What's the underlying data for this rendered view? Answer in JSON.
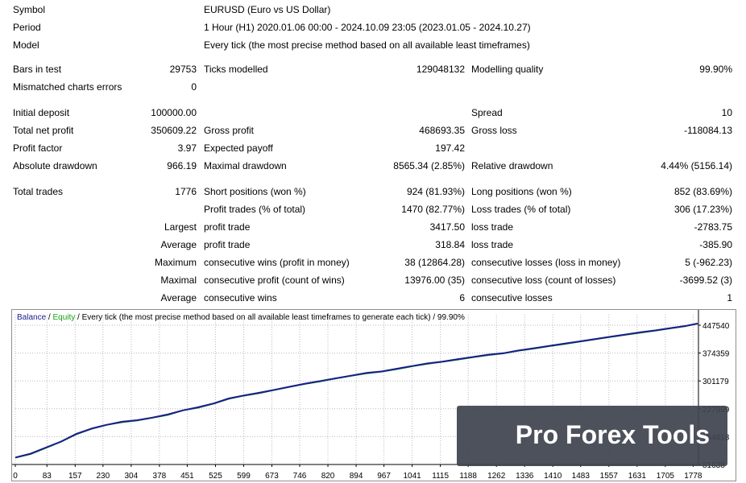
{
  "report": {
    "symbol_label": "Symbol",
    "symbol_value": "EURUSD (Euro vs US Dollar)",
    "period_label": "Period",
    "period_value": "1 Hour (H1) 2020.01.06 00:00 - 2024.10.09 23:05 (2023.01.05 - 2024.10.27)",
    "model_label": "Model",
    "model_value": "Every tick (the most precise method based on all available least timeframes)",
    "bars_label": "Bars in test",
    "bars_value": "29753",
    "ticks_label": "Ticks modelled",
    "ticks_value": "129048132",
    "quality_label": "Modelling quality",
    "quality_value": "99.90%",
    "mismatch_label": "Mismatched charts errors",
    "mismatch_value": "0",
    "deposit_label": "Initial deposit",
    "deposit_value": "100000.00",
    "spread_label": "Spread",
    "spread_value": "10",
    "net_profit_label": "Total net profit",
    "net_profit_value": "350609.22",
    "gross_profit_label": "Gross profit",
    "gross_profit_value": "468693.35",
    "gross_loss_label": "Gross loss",
    "gross_loss_value": "-118084.13",
    "profit_factor_label": "Profit factor",
    "profit_factor_value": "3.97",
    "expected_payoff_label": "Expected payoff",
    "expected_payoff_value": "197.42",
    "abs_dd_label": "Absolute drawdown",
    "abs_dd_value": "966.19",
    "max_dd_label": "Maximal drawdown",
    "max_dd_value": "8565.34 (2.85%)",
    "rel_dd_label": "Relative drawdown",
    "rel_dd_value": "4.44% (5156.14)",
    "total_trades_label": "Total trades",
    "total_trades_value": "1776",
    "short_label": "Short positions (won %)",
    "short_value": "924 (81.93%)",
    "long_label": "Long positions (won %)",
    "long_value": "852 (83.69%)",
    "profit_trades_label": "Profit trades (% of total)",
    "profit_trades_value": "1470 (82.77%)",
    "loss_trades_label": "Loss trades (% of total)",
    "loss_trades_value": "306 (17.23%)",
    "largest_label": "Largest",
    "largest_profit_label": "profit trade",
    "largest_profit_value": "3417.50",
    "largest_loss_label": "loss trade",
    "largest_loss_value": "-2783.75",
    "average_label": "Average",
    "average_profit_label": "profit trade",
    "average_profit_value": "318.84",
    "average_loss_label": "loss trade",
    "average_loss_value": "-385.90",
    "maximum_label": "Maximum",
    "max_cons_wins_label": "consecutive wins (profit in money)",
    "max_cons_wins_value": "38 (12864.28)",
    "max_cons_losses_label": "consecutive losses (loss in money)",
    "max_cons_losses_value": "5 (-962.23)",
    "maximal_label": "Maximal",
    "maximal_cons_profit_label": "consecutive profit (count of wins)",
    "maximal_cons_profit_value": "13976.00 (35)",
    "maximal_cons_loss_label": "consecutive loss (count of losses)",
    "maximal_cons_loss_value": "-3699.52 (3)",
    "avg_cons_label": "Average",
    "avg_cons_wins_label": "consecutive wins",
    "avg_cons_wins_value": "6",
    "avg_cons_losses_label": "consecutive losses",
    "avg_cons_losses_value": "1"
  },
  "chart_header": {
    "balance": "Balance",
    "sep1": " / ",
    "equity": "Equity",
    "rest": " / Every tick (the most precise method based on all available least timeframes to generate each tick) / 99.90%"
  },
  "watermark": {
    "text": "Pro Forex Tools"
  },
  "colors": {
    "balance": "#1b1c8e",
    "equity": "#14a214",
    "grid": "#b9b9b9"
  },
  "chart_data": {
    "type": "line",
    "x_ticks": [
      0,
      83,
      157,
      230,
      304,
      378,
      451,
      525,
      599,
      673,
      746,
      820,
      894,
      967,
      1041,
      1115,
      1188,
      1262,
      1336,
      1410,
      1483,
      1557,
      1631,
      1705,
      1778
    ],
    "y_ticks": [
      81638,
      154818,
      227999,
      301179,
      374359,
      447540
    ],
    "xlim": [
      0,
      1792
    ],
    "ylim": [
      81638,
      475000
    ],
    "series": [
      {
        "name": "Balance",
        "x": [
          0,
          40,
          80,
          120,
          160,
          200,
          240,
          280,
          320,
          360,
          400,
          440,
          480,
          520,
          560,
          600,
          640,
          680,
          720,
          760,
          800,
          840,
          880,
          920,
          960,
          1000,
          1040,
          1080,
          1120,
          1160,
          1200,
          1240,
          1280,
          1320,
          1360,
          1400,
          1440,
          1480,
          1520,
          1560,
          1600,
          1640,
          1680,
          1720,
          1760,
          1790
        ],
        "y": [
          100000,
          110000,
          126000,
          142000,
          162000,
          176000,
          186000,
          194000,
          198000,
          205000,
          213000,
          224000,
          232000,
          242000,
          255000,
          263000,
          270000,
          278000,
          286000,
          294000,
          301000,
          308000,
          315000,
          322000,
          326000,
          333000,
          340000,
          347000,
          352000,
          358000,
          364000,
          370000,
          374000,
          381000,
          387000,
          393000,
          399000,
          405000,
          411000,
          417000,
          423000,
          429000,
          434000,
          440000,
          446000,
          452000
        ]
      },
      {
        "name": "Equity",
        "x": [
          0,
          40,
          80,
          120,
          160,
          200,
          240,
          280,
          320,
          360,
          400,
          440,
          480,
          520,
          560,
          600,
          640,
          680,
          720,
          760,
          800,
          840,
          880,
          920,
          960,
          1000,
          1040,
          1080,
          1120,
          1160,
          1200,
          1240,
          1280,
          1320,
          1360,
          1400,
          1440,
          1480,
          1520,
          1560,
          1600,
          1640,
          1680,
          1720,
          1760,
          1790
        ],
        "y": [
          99000,
          108500,
          124500,
          141000,
          160500,
          175000,
          185500,
          192000,
          197000,
          204000,
          211500,
          223500,
          230500,
          241000,
          253500,
          262000,
          268500,
          277000,
          285000,
          293000,
          299500,
          307000,
          314000,
          320500,
          325000,
          331500,
          339000,
          345500,
          351000,
          356500,
          363000,
          368500,
          373000,
          380000,
          385500,
          392000,
          397500,
          404000,
          410000,
          416000,
          422000,
          427500,
          433000,
          439000,
          445000,
          451000
        ]
      }
    ]
  }
}
